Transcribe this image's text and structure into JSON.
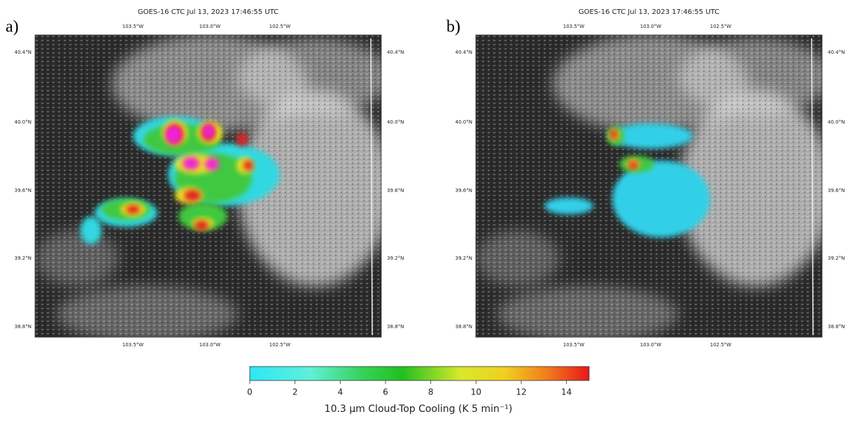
{
  "panels": [
    {
      "label": "a)",
      "title": "GOES-16 CTC Jul 13, 2023 17:46:55 UTC",
      "lon_labels": [
        "103.5°W",
        "103.0°W",
        "102.5°W"
      ],
      "lat_labels": [
        "40.4°N",
        "40.0°N",
        "39.6°N",
        "39.2°N",
        "38.8°N"
      ]
    },
    {
      "label": "b)",
      "title": "GOES-16 CTC Jul 13, 2023 17:46:55 UTC",
      "lon_labels": [
        "103.5°W",
        "103.0°W",
        "102.5°W"
      ],
      "lat_labels": [
        "40.4°N",
        "40.0°N",
        "39.6°N",
        "39.2°N",
        "38.8°N"
      ]
    }
  ],
  "colorbar": {
    "label": "10.3 μm Cloud-Top Cooling (K 5 min⁻¹)",
    "lim": [
      0,
      15
    ],
    "ticks": [
      0,
      2,
      4,
      6,
      8,
      10,
      12,
      14
    ]
  }
}
